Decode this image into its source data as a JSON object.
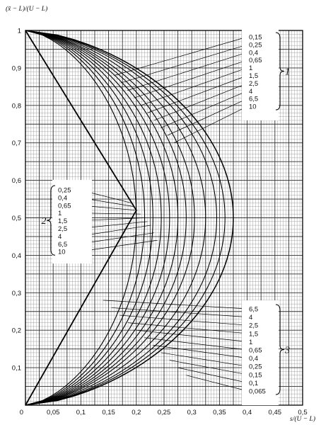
{
  "chart_data": {
    "type": "line",
    "ylabel": "(x̄ − L)/(U − L)",
    "xlabel": "s/(U − L)",
    "xlim": [
      0,
      0.5
    ],
    "ylim": [
      0,
      1
    ],
    "x_ticks": [
      "0",
      "0,05",
      "0,1",
      "0,15",
      "0,2",
      "0,25",
      "0,3",
      "0,35",
      "0,4",
      "0,45",
      "0,5"
    ],
    "y_ticks": [
      "0",
      "0,1",
      "0,2",
      "0,3",
      "0,4",
      "0,5",
      "0,6",
      "0,7",
      "0,8",
      "0,9",
      "1"
    ],
    "grid": true,
    "curve_peaks": [
      {
        "label": "0,065",
        "s_peak": 0.375
      },
      {
        "label": "0,1",
        "s_peak": 0.36
      },
      {
        "label": "0,15",
        "s_peak": 0.345
      },
      {
        "label": "0,25",
        "s_peak": 0.325
      },
      {
        "label": "0,4",
        "s_peak": 0.305
      },
      {
        "label": "0,65",
        "s_peak": 0.29
      },
      {
        "label": "1",
        "s_peak": 0.275
      },
      {
        "label": "1,5",
        "s_peak": 0.26
      },
      {
        "label": "2,5",
        "s_peak": 0.245
      },
      {
        "label": "4",
        "s_peak": 0.23
      },
      {
        "label": "6,5",
        "s_peak": 0.215
      },
      {
        "label": "10",
        "s_peak": 0.2
      }
    ],
    "groups": [
      {
        "number": "1",
        "position": "top-right",
        "labels": [
          "0,15",
          "0,25",
          "0,4",
          "0,65",
          "1",
          "1,5",
          "2,5",
          "4",
          "6,5",
          "10"
        ]
      },
      {
        "number": "2",
        "position": "middle-left",
        "labels": [
          "0,25",
          "0,4",
          "0,65",
          "1",
          "1,5",
          "2,5",
          "4",
          "6,5",
          "10"
        ]
      },
      {
        "number": "3",
        "position": "bottom-right",
        "labels": [
          "6,5",
          "4",
          "2,5",
          "1,5",
          "1",
          "0,65",
          "0,4",
          "0,25",
          "0,15",
          "0,1",
          "0,065"
        ]
      }
    ]
  }
}
